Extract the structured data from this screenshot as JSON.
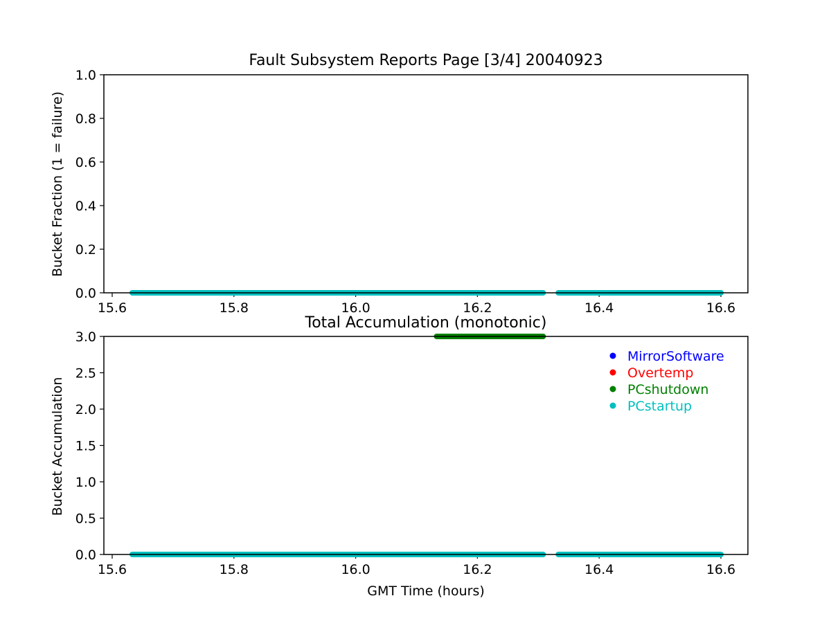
{
  "chart_data": [
    {
      "type": "scatter",
      "title": "Fault Subsystem Reports Page [3/4] 20040923",
      "xlabel": "",
      "ylabel": "Bucket Fraction (1 = failure)",
      "xlim": [
        15.6,
        16.6
      ],
      "ylim": [
        0.0,
        1.0
      ],
      "xticks": [
        "15.6",
        "15.8",
        "16.0",
        "16.2",
        "16.4",
        "16.6"
      ],
      "yticks": [
        "0.0",
        "0.2",
        "0.4",
        "0.6",
        "0.8",
        "1.0"
      ],
      "grid": false,
      "series": [
        {
          "name": "PCstartup",
          "color": "#00bfbf",
          "segments": [
            {
              "x_start": 15.633,
              "x_end": 16.308,
              "y": 0.0
            },
            {
              "x_start": 16.333,
              "x_end": 16.6,
              "y": 0.0
            }
          ]
        }
      ]
    },
    {
      "type": "scatter",
      "title": "Total Accumulation (monotonic)",
      "xlabel": "GMT Time (hours)",
      "ylabel": "Bucket Accumulation",
      "xlim": [
        15.6,
        16.6
      ],
      "ylim": [
        0.0,
        3.0
      ],
      "xticks": [
        "15.6",
        "15.8",
        "16.0",
        "16.2",
        "16.4",
        "16.6"
      ],
      "yticks": [
        "0.0",
        "0.5",
        "1.0",
        "1.5",
        "2.0",
        "2.5",
        "3.0"
      ],
      "grid": false,
      "legend_position": "top-right",
      "legend": [
        {
          "name": "MirrorSoftware",
          "color": "#0000ff"
        },
        {
          "name": "Overtemp",
          "color": "#ff0000"
        },
        {
          "name": "PCshutdown",
          "color": "#008000"
        },
        {
          "name": "PCstartup",
          "color": "#00bfbf"
        }
      ],
      "series": [
        {
          "name": "PCshutdown",
          "color": "#008000",
          "segments": [
            {
              "x_start": 16.133,
              "x_end": 16.308,
              "y": 3.0
            }
          ]
        },
        {
          "name": "PCstartup",
          "color": "#00bfbf",
          "segments": [
            {
              "x_start": 15.633,
              "x_end": 16.308,
              "y": 0.0
            },
            {
              "x_start": 16.333,
              "x_end": 16.6,
              "y": 0.0
            }
          ]
        }
      ]
    }
  ]
}
